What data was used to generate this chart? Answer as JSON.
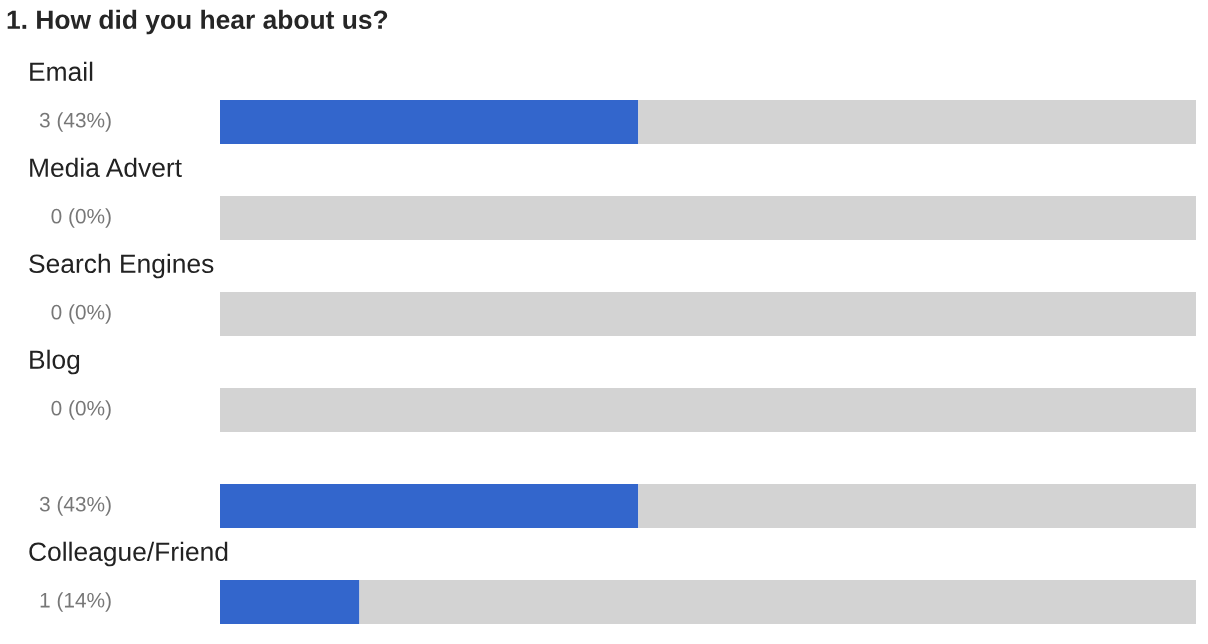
{
  "chart_data": {
    "type": "bar",
    "orientation": "horizontal",
    "stacked": true,
    "title": "1. How did you hear about us?",
    "categories": [
      "Email",
      "Media Advert",
      "Search Engines",
      "Blog",
      null,
      "Colleague/Friend"
    ],
    "series": [
      {
        "color": "#3366cc",
        "values": [
          3,
          0,
          0,
          0,
          3,
          1
        ],
        "value_labels": [
          "3 (43%)",
          "0 (0%)",
          "0 (0%)",
          "0 (0%)",
          "3 (43%)",
          "1 (14%)"
        ]
      },
      {
        "color": "#d3d3d3",
        "values": [
          4,
          7,
          7,
          7,
          4,
          6
        ]
      }
    ],
    "tick_labels": false
  }
}
